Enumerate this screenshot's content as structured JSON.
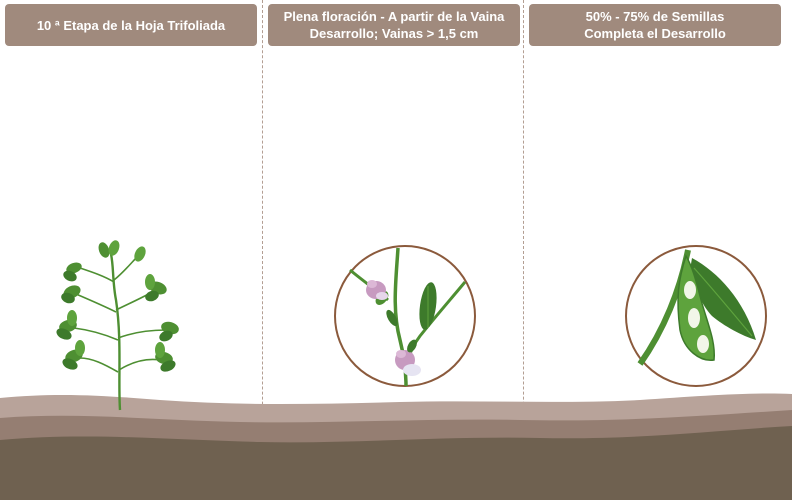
{
  "stages": [
    {
      "id": "stage-v10",
      "title_lines": [
        "10 ª Etapa de la Hoja Trifoliada"
      ]
    },
    {
      "id": "stage-r2-r3",
      "title_lines": [
        "Plena floración - A partir de la Vaina",
        "Desarrollo; Vainas > 1,5 cm"
      ]
    },
    {
      "id": "stage-r6",
      "title_lines": [
        "50% - 75% de Semillas",
        "Completa el Desarrollo"
      ]
    }
  ],
  "colors": {
    "label_bg": "#a08a7d",
    "label_text": "#ffffff",
    "leaf_dark": "#3d7a2b",
    "leaf_light": "#5ea33d",
    "flower": "#c79ac0",
    "circle_border": "#8b5a3c",
    "soil_top": "#b8a39a",
    "soil_mid": "#957e72",
    "soil_bottom": "#6f6150"
  },
  "icons": [
    "soybean-plant-icon",
    "flowering-stem-icon",
    "soybean-pod-icon"
  ]
}
